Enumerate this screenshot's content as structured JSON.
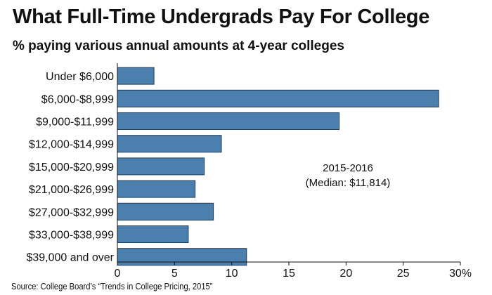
{
  "title": "What Full-Time Undergrads Pay For College",
  "subtitle": "% paying various annual amounts at 4-year colleges",
  "source": "Source: College Board’s “Trends in College Pricing, 2015”",
  "annotation": {
    "line1": "2015-2016",
    "line2": "(Median: $11,814)"
  },
  "colors": {
    "bar_fill": "#4a7fae",
    "bar_stroke": "#1f3b55",
    "text": "#111111"
  },
  "chart_data": {
    "type": "bar",
    "orientation": "horizontal",
    "title": "What Full-Time Undergrads Pay For College",
    "subtitle": "% paying various annual amounts at 4-year colleges",
    "categories": [
      "Under $6,000",
      "$6,000-$8,999",
      "$9,000-$11,999",
      "$12,000-$14,999",
      "$15,000-$20,999",
      "$21,000-$26,999",
      "$27,000-$32,999",
      "$33,000-$38,999",
      "$39,000 and over"
    ],
    "values": [
      3.2,
      28.1,
      19.4,
      9.1,
      7.6,
      6.8,
      8.4,
      6.2,
      11.3
    ],
    "xlim": [
      0,
      30
    ],
    "xticks": [
      0,
      5,
      10,
      15,
      20,
      25,
      30
    ],
    "xtick_labels": [
      "0",
      "5",
      "10",
      "15",
      "20",
      "25",
      "30%"
    ],
    "grid": false,
    "legend": "none"
  }
}
